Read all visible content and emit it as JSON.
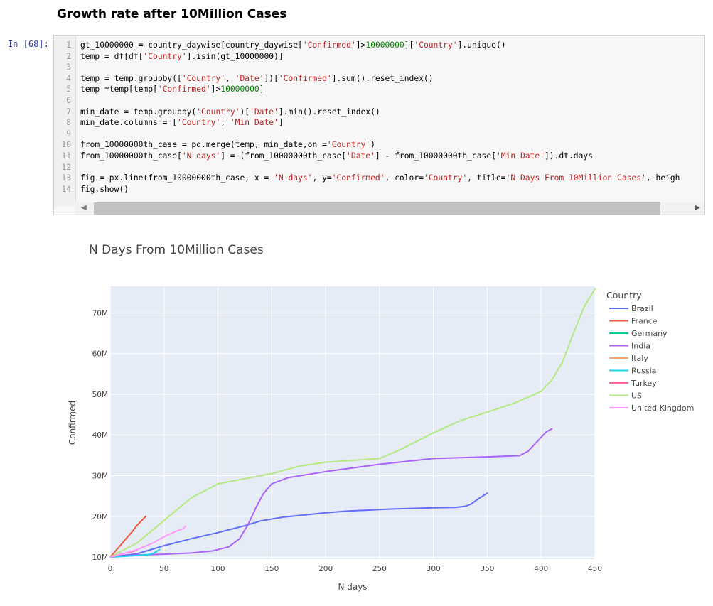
{
  "notebook": {
    "heading": "Growth rate after 10Million Cases",
    "prompt": "In [68]:",
    "code_lines": [
      [
        {
          "t": "gt_10000000 = country_daywise[country_daywise["
        },
        {
          "t": "'Confirmed'",
          "c": "s"
        },
        {
          "t": "]>"
        },
        {
          "t": "10000000",
          "c": "n"
        },
        {
          "t": "]["
        },
        {
          "t": "'Country'",
          "c": "s"
        },
        {
          "t": "].unique()"
        }
      ],
      [
        {
          "t": "temp = df[df["
        },
        {
          "t": "'Country'",
          "c": "s"
        },
        {
          "t": "].isin(gt_10000000)]"
        }
      ],
      [],
      [
        {
          "t": "temp = temp.groupby(["
        },
        {
          "t": "'Country'",
          "c": "s"
        },
        {
          "t": ", "
        },
        {
          "t": "'Date'",
          "c": "s"
        },
        {
          "t": "])["
        },
        {
          "t": "'Confirmed'",
          "c": "s"
        },
        {
          "t": "].sum().reset_index()"
        }
      ],
      [
        {
          "t": "temp =temp[temp["
        },
        {
          "t": "'Confirmed'",
          "c": "s"
        },
        {
          "t": "]>"
        },
        {
          "t": "10000000",
          "c": "n"
        },
        {
          "t": "]"
        }
      ],
      [],
      [
        {
          "t": "min_date = temp.groupby("
        },
        {
          "t": "'Country'",
          "c": "s"
        },
        {
          "t": ")["
        },
        {
          "t": "'Date'",
          "c": "s"
        },
        {
          "t": "].min().reset_index()"
        }
      ],
      [
        {
          "t": "min_date.columns = ["
        },
        {
          "t": "'Country'",
          "c": "s"
        },
        {
          "t": ", "
        },
        {
          "t": "'Min Date'",
          "c": "s"
        },
        {
          "t": "]"
        }
      ],
      [],
      [
        {
          "t": "from_10000000th_case = pd.merge(temp, min_date,on ="
        },
        {
          "t": "'Country'",
          "c": "s"
        },
        {
          "t": ")"
        }
      ],
      [
        {
          "t": "from_10000000th_case["
        },
        {
          "t": "'N days'",
          "c": "s"
        },
        {
          "t": "] = (from_10000000th_case["
        },
        {
          "t": "'Date'",
          "c": "s"
        },
        {
          "t": "] - from_10000000th_case["
        },
        {
          "t": "'Min Date'",
          "c": "s"
        },
        {
          "t": "]).dt.days"
        }
      ],
      [],
      [
        {
          "t": "fig = px.line(from_10000000th_case, x = "
        },
        {
          "t": "'N days'",
          "c": "s"
        },
        {
          "t": ", y="
        },
        {
          "t": "'Confirmed'",
          "c": "s"
        },
        {
          "t": ", color="
        },
        {
          "t": "'Country'",
          "c": "s"
        },
        {
          "t": ", title="
        },
        {
          "t": "'N Days From 10Million Cases'",
          "c": "s"
        },
        {
          "t": ", heigh"
        }
      ],
      [
        {
          "t": "fig.show()"
        }
      ]
    ],
    "scroll_left_icon": "triangle-left-icon",
    "scroll_right_icon": "triangle-right-icon"
  },
  "chart_data": {
    "type": "line",
    "title": "N Days From 10Million Cases",
    "xlabel": "N days",
    "ylabel": "Confirmed",
    "xlim": [
      0,
      450
    ],
    "ylim": [
      9500000,
      76500000
    ],
    "x_ticks": [
      0,
      50,
      100,
      150,
      200,
      250,
      300,
      350,
      400,
      450
    ],
    "x_tick_labels": [
      "0",
      "50",
      "100",
      "150",
      "200",
      "250",
      "300",
      "350",
      "400",
      "450"
    ],
    "y_ticks": [
      10000000,
      20000000,
      30000000,
      40000000,
      50000000,
      60000000,
      70000000
    ],
    "y_tick_labels": [
      "10M",
      "20M",
      "30M",
      "40M",
      "50M",
      "60M",
      "70M"
    ],
    "grid": true,
    "legend_title": "Country",
    "legend_position": "right",
    "series": [
      {
        "name": "Brazil",
        "color": "#636efa",
        "points": [
          [
            0,
            10000000
          ],
          [
            25,
            10800000
          ],
          [
            50,
            12800000
          ],
          [
            75,
            14500000
          ],
          [
            100,
            16000000
          ],
          [
            125,
            17700000
          ],
          [
            140,
            18900000
          ],
          [
            160,
            19800000
          ],
          [
            200,
            20900000
          ],
          [
            220,
            21300000
          ],
          [
            260,
            21800000
          ],
          [
            300,
            22100000
          ],
          [
            320,
            22200000
          ],
          [
            330,
            22500000
          ],
          [
            335,
            23000000
          ],
          [
            340,
            24000000
          ],
          [
            350,
            25700000
          ]
        ]
      },
      {
        "name": "France",
        "color": "#ef553b",
        "points": [
          [
            0,
            10000000
          ],
          [
            5,
            11500000
          ],
          [
            10,
            13000000
          ],
          [
            15,
            14600000
          ],
          [
            20,
            16100000
          ],
          [
            25,
            17800000
          ],
          [
            30,
            19200000
          ],
          [
            33,
            20000000
          ]
        ]
      },
      {
        "name": "Germany",
        "color": "#00cc96",
        "points": [
          [
            0,
            10000000
          ]
        ]
      },
      {
        "name": "India",
        "color": "#ab63fa",
        "points": [
          [
            0,
            10000000
          ],
          [
            25,
            10500000
          ],
          [
            50,
            10700000
          ],
          [
            75,
            11000000
          ],
          [
            95,
            11500000
          ],
          [
            110,
            12500000
          ],
          [
            120,
            14500000
          ],
          [
            128,
            18000000
          ],
          [
            135,
            22000000
          ],
          [
            142,
            25500000
          ],
          [
            150,
            28000000
          ],
          [
            165,
            29500000
          ],
          [
            200,
            31000000
          ],
          [
            250,
            32800000
          ],
          [
            300,
            34200000
          ],
          [
            350,
            34600000
          ],
          [
            380,
            34900000
          ],
          [
            388,
            36000000
          ],
          [
            395,
            38000000
          ],
          [
            405,
            40800000
          ],
          [
            410,
            41500000
          ]
        ]
      },
      {
        "name": "Italy",
        "color": "#ffa15a",
        "points": [
          [
            0,
            10000000
          ]
        ]
      },
      {
        "name": "Russia",
        "color": "#19d3f3",
        "points": [
          [
            0,
            10000000
          ],
          [
            20,
            10300000
          ],
          [
            35,
            10600000
          ],
          [
            40,
            10900000
          ],
          [
            44,
            11500000
          ],
          [
            46,
            11800000
          ]
        ]
      },
      {
        "name": "Turkey",
        "color": "#ff6692",
        "points": [
          [
            0,
            10000000
          ],
          [
            10,
            10700000
          ],
          [
            20,
            11300000
          ],
          [
            25,
            11700000
          ]
        ]
      },
      {
        "name": "US",
        "color": "#b6e880",
        "points": [
          [
            0,
            10000000
          ],
          [
            25,
            13500000
          ],
          [
            50,
            19000000
          ],
          [
            75,
            24500000
          ],
          [
            100,
            28000000
          ],
          [
            150,
            30500000
          ],
          [
            175,
            32300000
          ],
          [
            200,
            33300000
          ],
          [
            250,
            34200000
          ],
          [
            270,
            36500000
          ],
          [
            300,
            40500000
          ],
          [
            325,
            43500000
          ],
          [
            350,
            45600000
          ],
          [
            375,
            47800000
          ],
          [
            400,
            50700000
          ],
          [
            410,
            53500000
          ],
          [
            420,
            58000000
          ],
          [
            430,
            65000000
          ],
          [
            440,
            71500000
          ],
          [
            450,
            75900000
          ]
        ]
      },
      {
        "name": "United Kingdom",
        "color": "#ff97ff",
        "points": [
          [
            0,
            10000000
          ],
          [
            10,
            10700000
          ],
          [
            25,
            11800000
          ],
          [
            40,
            13500000
          ],
          [
            50,
            15000000
          ],
          [
            60,
            16200000
          ],
          [
            68,
            17000000
          ],
          [
            70,
            17600000
          ]
        ]
      }
    ]
  }
}
